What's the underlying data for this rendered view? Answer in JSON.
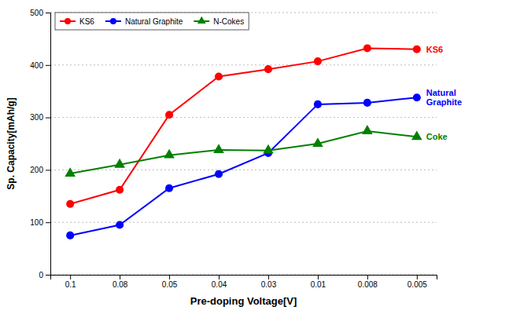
{
  "chart_data": {
    "type": "line",
    "xlabel": "Pre-doping Voltage[V]",
    "ylabel": "Sp. Capacity[mAh/g]",
    "categories": [
      "0.1",
      "0.08",
      "0.05",
      "0.04",
      "0.03",
      "0.01",
      "0.008",
      "0.005"
    ],
    "series": [
      {
        "name": "KS6",
        "color": "#FF0000",
        "marker": "circle",
        "values": [
          135,
          162,
          305,
          378,
          392,
          407,
          432,
          430
        ]
      },
      {
        "name": "Natural Graphite",
        "color": "#0000FF",
        "marker": "circle",
        "values": [
          75,
          95,
          165,
          192,
          232,
          325,
          328,
          338
        ]
      },
      {
        "name": "N-Cokes",
        "color": "#008000",
        "marker": "triangle",
        "values": [
          193,
          210,
          228,
          238,
          237,
          250,
          274,
          263
        ]
      }
    ],
    "annotations": [
      {
        "text": "KS6",
        "color": "#FF0000"
      },
      {
        "text": "Natural\nGraphite",
        "color": "#0000FF"
      },
      {
        "text": "Coke",
        "color": "#008000"
      }
    ],
    "ylim": [
      0,
      500
    ],
    "yticks": [
      0,
      100,
      200,
      300,
      400,
      500
    ],
    "grid": true,
    "legend": "upper left"
  }
}
